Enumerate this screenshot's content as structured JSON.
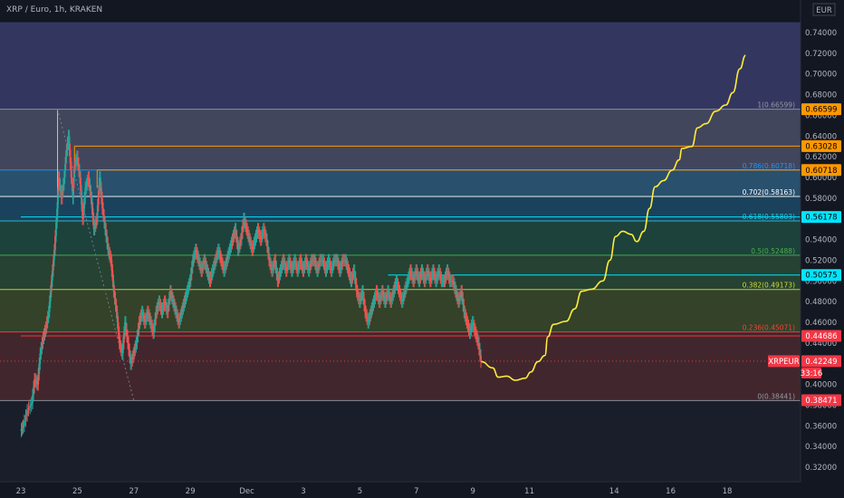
{
  "header": {
    "title": "XRP / Euro, 1h, KRAKEN"
  },
  "currency_label": "EUR",
  "chart_data": {
    "type": "candlestick",
    "title": "XRP / Euro, 1h, KRAKEN",
    "symbol": "XRPEUR",
    "ylim": [
      0.31,
      0.75
    ],
    "y_ticks": [
      "0.32000",
      "0.34000",
      "0.36000",
      "0.38000",
      "0.40000",
      "0.42000",
      "0.44000",
      "0.46000",
      "0.48000",
      "0.50000",
      "0.52000",
      "0.54000",
      "0.56000",
      "0.58000",
      "0.60000",
      "0.62000",
      "0.64000",
      "0.66000",
      "0.68000",
      "0.70000",
      "0.72000",
      "0.74000"
    ],
    "x_ticks": [
      {
        "label": "23",
        "day": 0
      },
      {
        "label": "25",
        "day": 2
      },
      {
        "label": "27",
        "day": 4
      },
      {
        "label": "29",
        "day": 6
      },
      {
        "label": "Dec",
        "day": 8
      },
      {
        "label": "3",
        "day": 10
      },
      {
        "label": "5",
        "day": 12
      },
      {
        "label": "7",
        "day": 14
      },
      {
        "label": "9",
        "day": 16
      },
      {
        "label": "11",
        "day": 18
      },
      {
        "label": "14",
        "day": 21
      },
      {
        "label": "16",
        "day": 23
      },
      {
        "label": "18",
        "day": 25
      }
    ],
    "fib_levels": [
      {
        "ratio": "1",
        "value": 0.66599,
        "label": "1(0.66599)",
        "color": "#9598a1"
      },
      {
        "ratio": "0.786",
        "value": 0.60718,
        "label": "0.786(0.60718)",
        "color": "#2196f3"
      },
      {
        "ratio": "0.702",
        "value": 0.58163,
        "label": "0.702(0.58163)",
        "color": "#ffffff"
      },
      {
        "ratio": "0.618",
        "value": 0.55803,
        "label": "0.618(0.55803)",
        "color": "#26c6da"
      },
      {
        "ratio": "0.5",
        "value": 0.52488,
        "label": "0.5(0.52488)",
        "color": "#4caf50"
      },
      {
        "ratio": "0.382",
        "value": 0.49173,
        "label": "0.382(0.49173)",
        "color": "#cddc39"
      },
      {
        "ratio": "0.236",
        "value": 0.45071,
        "label": "0.236(0.45071)",
        "color": "#f44336"
      },
      {
        "ratio": "0",
        "value": 0.38441,
        "label": "0(0.38441)",
        "color": "#9598a1"
      }
    ],
    "price_tags": [
      {
        "value": 0.66599,
        "label": "0.66599",
        "bg": "#ff9800",
        "fg": "#000000"
      },
      {
        "value": 0.63028,
        "label": "0.63028",
        "bg": "#ff9800",
        "fg": "#000000"
      },
      {
        "value": 0.60718,
        "label": "0.60718",
        "bg": "#ff9800",
        "fg": "#000000"
      },
      {
        "value": 0.56178,
        "label": "0.56178",
        "bg": "#00e5ff",
        "fg": "#000000"
      },
      {
        "value": 0.50575,
        "label": "0.50575",
        "bg": "#00e5ff",
        "fg": "#000000"
      },
      {
        "value": 0.44686,
        "label": "0.44686",
        "bg": "#f23645",
        "fg": "#ffffff"
      },
      {
        "value": 0.38471,
        "label": "0.38471",
        "bg": "#f23645",
        "fg": "#ffffff"
      }
    ],
    "current_price": {
      "symbol": "XRPEUR",
      "value": 0.42249,
      "label": "0.42249",
      "countdown": "33:16"
    },
    "horizontal_lines": [
      {
        "value": 0.63028,
        "color": "#ff9800",
        "from_day": 1.9
      },
      {
        "value": 0.60718,
        "color": "#ff9800",
        "from_day": 2.7
      },
      {
        "value": 0.56178,
        "color": "#00e5ff",
        "from_day": 0
      },
      {
        "value": 0.50575,
        "color": "#00e5ff",
        "from_day": 13.0
      },
      {
        "value": 0.44686,
        "color": "#f23645",
        "from_day": 0
      }
    ],
    "projection_path": [
      [
        16.3,
        0.422
      ],
      [
        16.7,
        0.416
      ],
      [
        16.9,
        0.407
      ],
      [
        17.2,
        0.408
      ],
      [
        17.5,
        0.404
      ],
      [
        17.85,
        0.406
      ],
      [
        18.05,
        0.412
      ],
      [
        18.3,
        0.422
      ],
      [
        18.55,
        0.428
      ],
      [
        18.65,
        0.446
      ],
      [
        18.85,
        0.458
      ],
      [
        19.3,
        0.461
      ],
      [
        19.6,
        0.473
      ],
      [
        19.85,
        0.49
      ],
      [
        20.2,
        0.492
      ],
      [
        20.6,
        0.5
      ],
      [
        20.85,
        0.52
      ],
      [
        21.05,
        0.543
      ],
      [
        21.3,
        0.548
      ],
      [
        21.6,
        0.545
      ],
      [
        21.8,
        0.538
      ],
      [
        22.05,
        0.548
      ],
      [
        22.25,
        0.57
      ],
      [
        22.45,
        0.591
      ],
      [
        22.75,
        0.597
      ],
      [
        23.05,
        0.607
      ],
      [
        23.3,
        0.617
      ],
      [
        23.4,
        0.628
      ],
      [
        23.75,
        0.63
      ],
      [
        23.95,
        0.648
      ],
      [
        24.25,
        0.652
      ],
      [
        24.6,
        0.664
      ],
      [
        24.95,
        0.67
      ],
      [
        25.2,
        0.682
      ],
      [
        25.45,
        0.705
      ],
      [
        25.65,
        0.718
      ]
    ],
    "price_series": [
      [
        0,
        0.355
      ],
      [
        0.1,
        0.36
      ],
      [
        0.25,
        0.375
      ],
      [
        0.4,
        0.382
      ],
      [
        0.5,
        0.405
      ],
      [
        0.6,
        0.4
      ],
      [
        0.7,
        0.43
      ],
      [
        0.8,
        0.445
      ],
      [
        0.9,
        0.455
      ],
      [
        1.0,
        0.47
      ],
      [
        1.1,
        0.5
      ],
      [
        1.2,
        0.53
      ],
      [
        1.3,
        0.57
      ],
      [
        1.35,
        0.6
      ],
      [
        1.45,
        0.58
      ],
      [
        1.55,
        0.6
      ],
      [
        1.6,
        0.62
      ],
      [
        1.7,
        0.64
      ],
      [
        1.8,
        0.6
      ],
      [
        1.85,
        0.58
      ],
      [
        1.9,
        0.61
      ],
      [
        2.0,
        0.62
      ],
      [
        2.1,
        0.6
      ],
      [
        2.2,
        0.56
      ],
      [
        2.3,
        0.59
      ],
      [
        2.4,
        0.6
      ],
      [
        2.5,
        0.58
      ],
      [
        2.6,
        0.55
      ],
      [
        2.7,
        0.56
      ],
      [
        2.8,
        0.6
      ],
      [
        2.9,
        0.57
      ],
      [
        3.0,
        0.55
      ],
      [
        3.1,
        0.53
      ],
      [
        3.2,
        0.52
      ],
      [
        3.3,
        0.49
      ],
      [
        3.4,
        0.47
      ],
      [
        3.5,
        0.44
      ],
      [
        3.6,
        0.43
      ],
      [
        3.7,
        0.46
      ],
      [
        3.8,
        0.44
      ],
      [
        3.9,
        0.42
      ],
      [
        4.0,
        0.43
      ],
      [
        4.1,
        0.44
      ],
      [
        4.2,
        0.46
      ],
      [
        4.3,
        0.47
      ],
      [
        4.4,
        0.46
      ],
      [
        4.5,
        0.47
      ],
      [
        4.6,
        0.46
      ],
      [
        4.7,
        0.45
      ],
      [
        4.8,
        0.47
      ],
      [
        4.9,
        0.48
      ],
      [
        5.0,
        0.47
      ],
      [
        5.1,
        0.48
      ],
      [
        5.2,
        0.47
      ],
      [
        5.3,
        0.49
      ],
      [
        5.4,
        0.48
      ],
      [
        5.5,
        0.47
      ],
      [
        5.6,
        0.46
      ],
      [
        5.7,
        0.47
      ],
      [
        5.8,
        0.48
      ],
      [
        5.9,
        0.49
      ],
      [
        6.0,
        0.5
      ],
      [
        6.1,
        0.52
      ],
      [
        6.2,
        0.53
      ],
      [
        6.3,
        0.52
      ],
      [
        6.4,
        0.51
      ],
      [
        6.5,
        0.52
      ],
      [
        6.6,
        0.51
      ],
      [
        6.7,
        0.5
      ],
      [
        6.8,
        0.51
      ],
      [
        6.9,
        0.52
      ],
      [
        7.0,
        0.53
      ],
      [
        7.1,
        0.52
      ],
      [
        7.2,
        0.51
      ],
      [
        7.3,
        0.52
      ],
      [
        7.4,
        0.53
      ],
      [
        7.5,
        0.54
      ],
      [
        7.6,
        0.55
      ],
      [
        7.7,
        0.53
      ],
      [
        7.8,
        0.54
      ],
      [
        7.9,
        0.56
      ],
      [
        8.0,
        0.55
      ],
      [
        8.1,
        0.54
      ],
      [
        8.2,
        0.53
      ],
      [
        8.3,
        0.54
      ],
      [
        8.4,
        0.55
      ],
      [
        8.5,
        0.54
      ],
      [
        8.6,
        0.55
      ],
      [
        8.7,
        0.54
      ],
      [
        8.8,
        0.52
      ],
      [
        8.9,
        0.51
      ],
      [
        9.0,
        0.52
      ],
      [
        9.1,
        0.5
      ],
      [
        9.2,
        0.51
      ],
      [
        9.3,
        0.52
      ],
      [
        9.4,
        0.51
      ],
      [
        9.5,
        0.52
      ],
      [
        9.6,
        0.51
      ],
      [
        9.7,
        0.52
      ],
      [
        9.8,
        0.51
      ],
      [
        9.9,
        0.52
      ],
      [
        10.0,
        0.51
      ],
      [
        10.1,
        0.52
      ],
      [
        10.2,
        0.51
      ],
      [
        10.3,
        0.52
      ],
      [
        10.4,
        0.52
      ],
      [
        10.5,
        0.51
      ],
      [
        10.6,
        0.52
      ],
      [
        10.7,
        0.52
      ],
      [
        10.8,
        0.51
      ],
      [
        10.9,
        0.52
      ],
      [
        11.0,
        0.51
      ],
      [
        11.1,
        0.52
      ],
      [
        11.2,
        0.52
      ],
      [
        11.3,
        0.51
      ],
      [
        11.4,
        0.52
      ],
      [
        11.5,
        0.52
      ],
      [
        11.6,
        0.51
      ],
      [
        11.7,
        0.5
      ],
      [
        11.8,
        0.51
      ],
      [
        11.9,
        0.49
      ],
      [
        12.0,
        0.48
      ],
      [
        12.1,
        0.49
      ],
      [
        12.2,
        0.47
      ],
      [
        12.3,
        0.46
      ],
      [
        12.4,
        0.47
      ],
      [
        12.5,
        0.48
      ],
      [
        12.6,
        0.49
      ],
      [
        12.7,
        0.48
      ],
      [
        12.8,
        0.49
      ],
      [
        12.9,
        0.48
      ],
      [
        13.0,
        0.49
      ],
      [
        13.1,
        0.48
      ],
      [
        13.2,
        0.49
      ],
      [
        13.3,
        0.5
      ],
      [
        13.4,
        0.49
      ],
      [
        13.5,
        0.48
      ],
      [
        13.6,
        0.49
      ],
      [
        13.7,
        0.5
      ],
      [
        13.8,
        0.51
      ],
      [
        13.9,
        0.5
      ],
      [
        14.0,
        0.51
      ],
      [
        14.1,
        0.5
      ],
      [
        14.2,
        0.51
      ],
      [
        14.3,
        0.5
      ],
      [
        14.4,
        0.51
      ],
      [
        14.5,
        0.5
      ],
      [
        14.6,
        0.51
      ],
      [
        14.7,
        0.5
      ],
      [
        14.8,
        0.51
      ],
      [
        14.9,
        0.5
      ],
      [
        15.0,
        0.5
      ],
      [
        15.1,
        0.51
      ],
      [
        15.2,
        0.5
      ],
      [
        15.3,
        0.5
      ],
      [
        15.4,
        0.49
      ],
      [
        15.5,
        0.48
      ],
      [
        15.6,
        0.49
      ],
      [
        15.7,
        0.47
      ],
      [
        15.8,
        0.46
      ],
      [
        15.9,
        0.45
      ],
      [
        16.0,
        0.46
      ],
      [
        16.1,
        0.45
      ],
      [
        16.2,
        0.44
      ],
      [
        16.3,
        0.422
      ]
    ],
    "overlay_zones": [
      {
        "from": 0.66599,
        "to": 0.75,
        "color": "#3a3d6b"
      },
      {
        "from": 0.60718,
        "to": 0.66599,
        "color": "#4b4f66"
      },
      {
        "from": 0.58163,
        "to": 0.60718,
        "color": "#2e5a7a"
      },
      {
        "from": 0.55803,
        "to": 0.58163,
        "color": "#1d4a66"
      },
      {
        "from": 0.52488,
        "to": 0.55803,
        "color": "#1f4a3f"
      },
      {
        "from": 0.49173,
        "to": 0.52488,
        "color": "#2a4a35"
      },
      {
        "from": 0.45071,
        "to": 0.49173,
        "color": "#3a4a2a"
      },
      {
        "from": 0.38441,
        "to": 0.45071,
        "color": "#4a2a2f"
      }
    ]
  }
}
